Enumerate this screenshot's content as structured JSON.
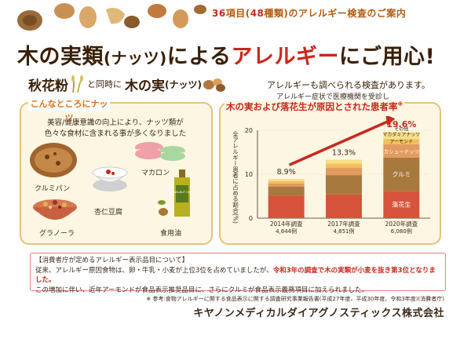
{
  "header": {
    "lead": "36",
    "mid1": "項目(",
    "count": "48",
    "mid2": "種類)のアレルギー検査のご案内"
  },
  "title": {
    "part1": "木の実類",
    "part2": "(ナッツ)",
    "part3": "による",
    "part4": "アレルギー",
    "part5": "にご用心!"
  },
  "sub": {
    "soba": "秋花粉",
    "with": "と同時に",
    "nuts": "木の実",
    "nuts_paren": "(ナッツ)",
    "desc": "アレルギーも調べられる検査があります。"
  },
  "left_panel": {
    "title": "こんなところにナッツ",
    "desc": "美容/健康意識の向上により、ナッツ類が色々な食材に含まれる事が多くなりました",
    "foods": [
      "クルミパン",
      "杏仁豆腐",
      "マカロン",
      "グラノーラ",
      "食用油"
    ],
    "oil_bottle_text": "WALNUT OIL"
  },
  "right_panel": {
    "caption": "アレルギー症状で医療機関を受診し",
    "title": "木の実および落花生が原因とされた患者率",
    "title_mark": "※"
  },
  "chart_data": {
    "type": "bar",
    "stacked": true,
    "ylabel": "全アレルギー患者に占める割合(%)",
    "ylim": [
      0,
      20
    ],
    "yticks": [
      0,
      10,
      20
    ],
    "categories": [
      "2014年調査",
      "2017年調査",
      "2020年調査"
    ],
    "sample_sizes": [
      "4,644例",
      "4,851例",
      "6,080例"
    ],
    "totals": [
      "8.9%",
      "13.3%",
      "19.6%"
    ],
    "total_values": [
      8.9,
      13.3,
      19.6
    ],
    "series": [
      {
        "name": "落花生",
        "values": [
          5.1,
          5.4,
          6.2
        ],
        "color": "#d7533c"
      },
      {
        "name": "クルミ",
        "values": [
          2.1,
          4.4,
          7.6
        ],
        "color": "#a8793e"
      },
      {
        "name": "カシューナッツ",
        "values": [
          0.7,
          1.7,
          3.0
        ],
        "color": "#e39a5e"
      },
      {
        "name": "アーモンド",
        "values": [
          0.5,
          0.9,
          1.2
        ],
        "color": "#f2c05c"
      },
      {
        "name": "その他\nマカダミアナッツ",
        "values": [
          0.5,
          0.9,
          1.6
        ],
        "color": "#f7de8a"
      }
    ],
    "segment_labels": {
      "2020": [
        "落花生",
        "クルミ",
        "カシューナッツ",
        "アーモンド",
        "マカダミアナッツ",
        "その他"
      ]
    },
    "highlight_color": "#c8281e"
  },
  "notice": {
    "heading": "【消費者庁が定めるアレルギー表示品目について】",
    "line1a": "従来、アレルギー原因食物は、卵・牛乳・小麦が上位3位を占めていましたが、",
    "line1b": "令和3年の調査で木の実類が小麦を抜き第3位となりました。",
    "line2": "この増加に伴い、近年アーモンドが食品表示推奨品目に、さらにクルミが食品表示義務項目に加えられました。"
  },
  "footnote": "※ 参考:食物アレルギーに関する食品表示に関する調査研究事業報告書(平成27年度、平成30年度、令和3年度)(消費者庁)",
  "company": "キヤノンメディカルダイアグノスティックス株式会社"
}
